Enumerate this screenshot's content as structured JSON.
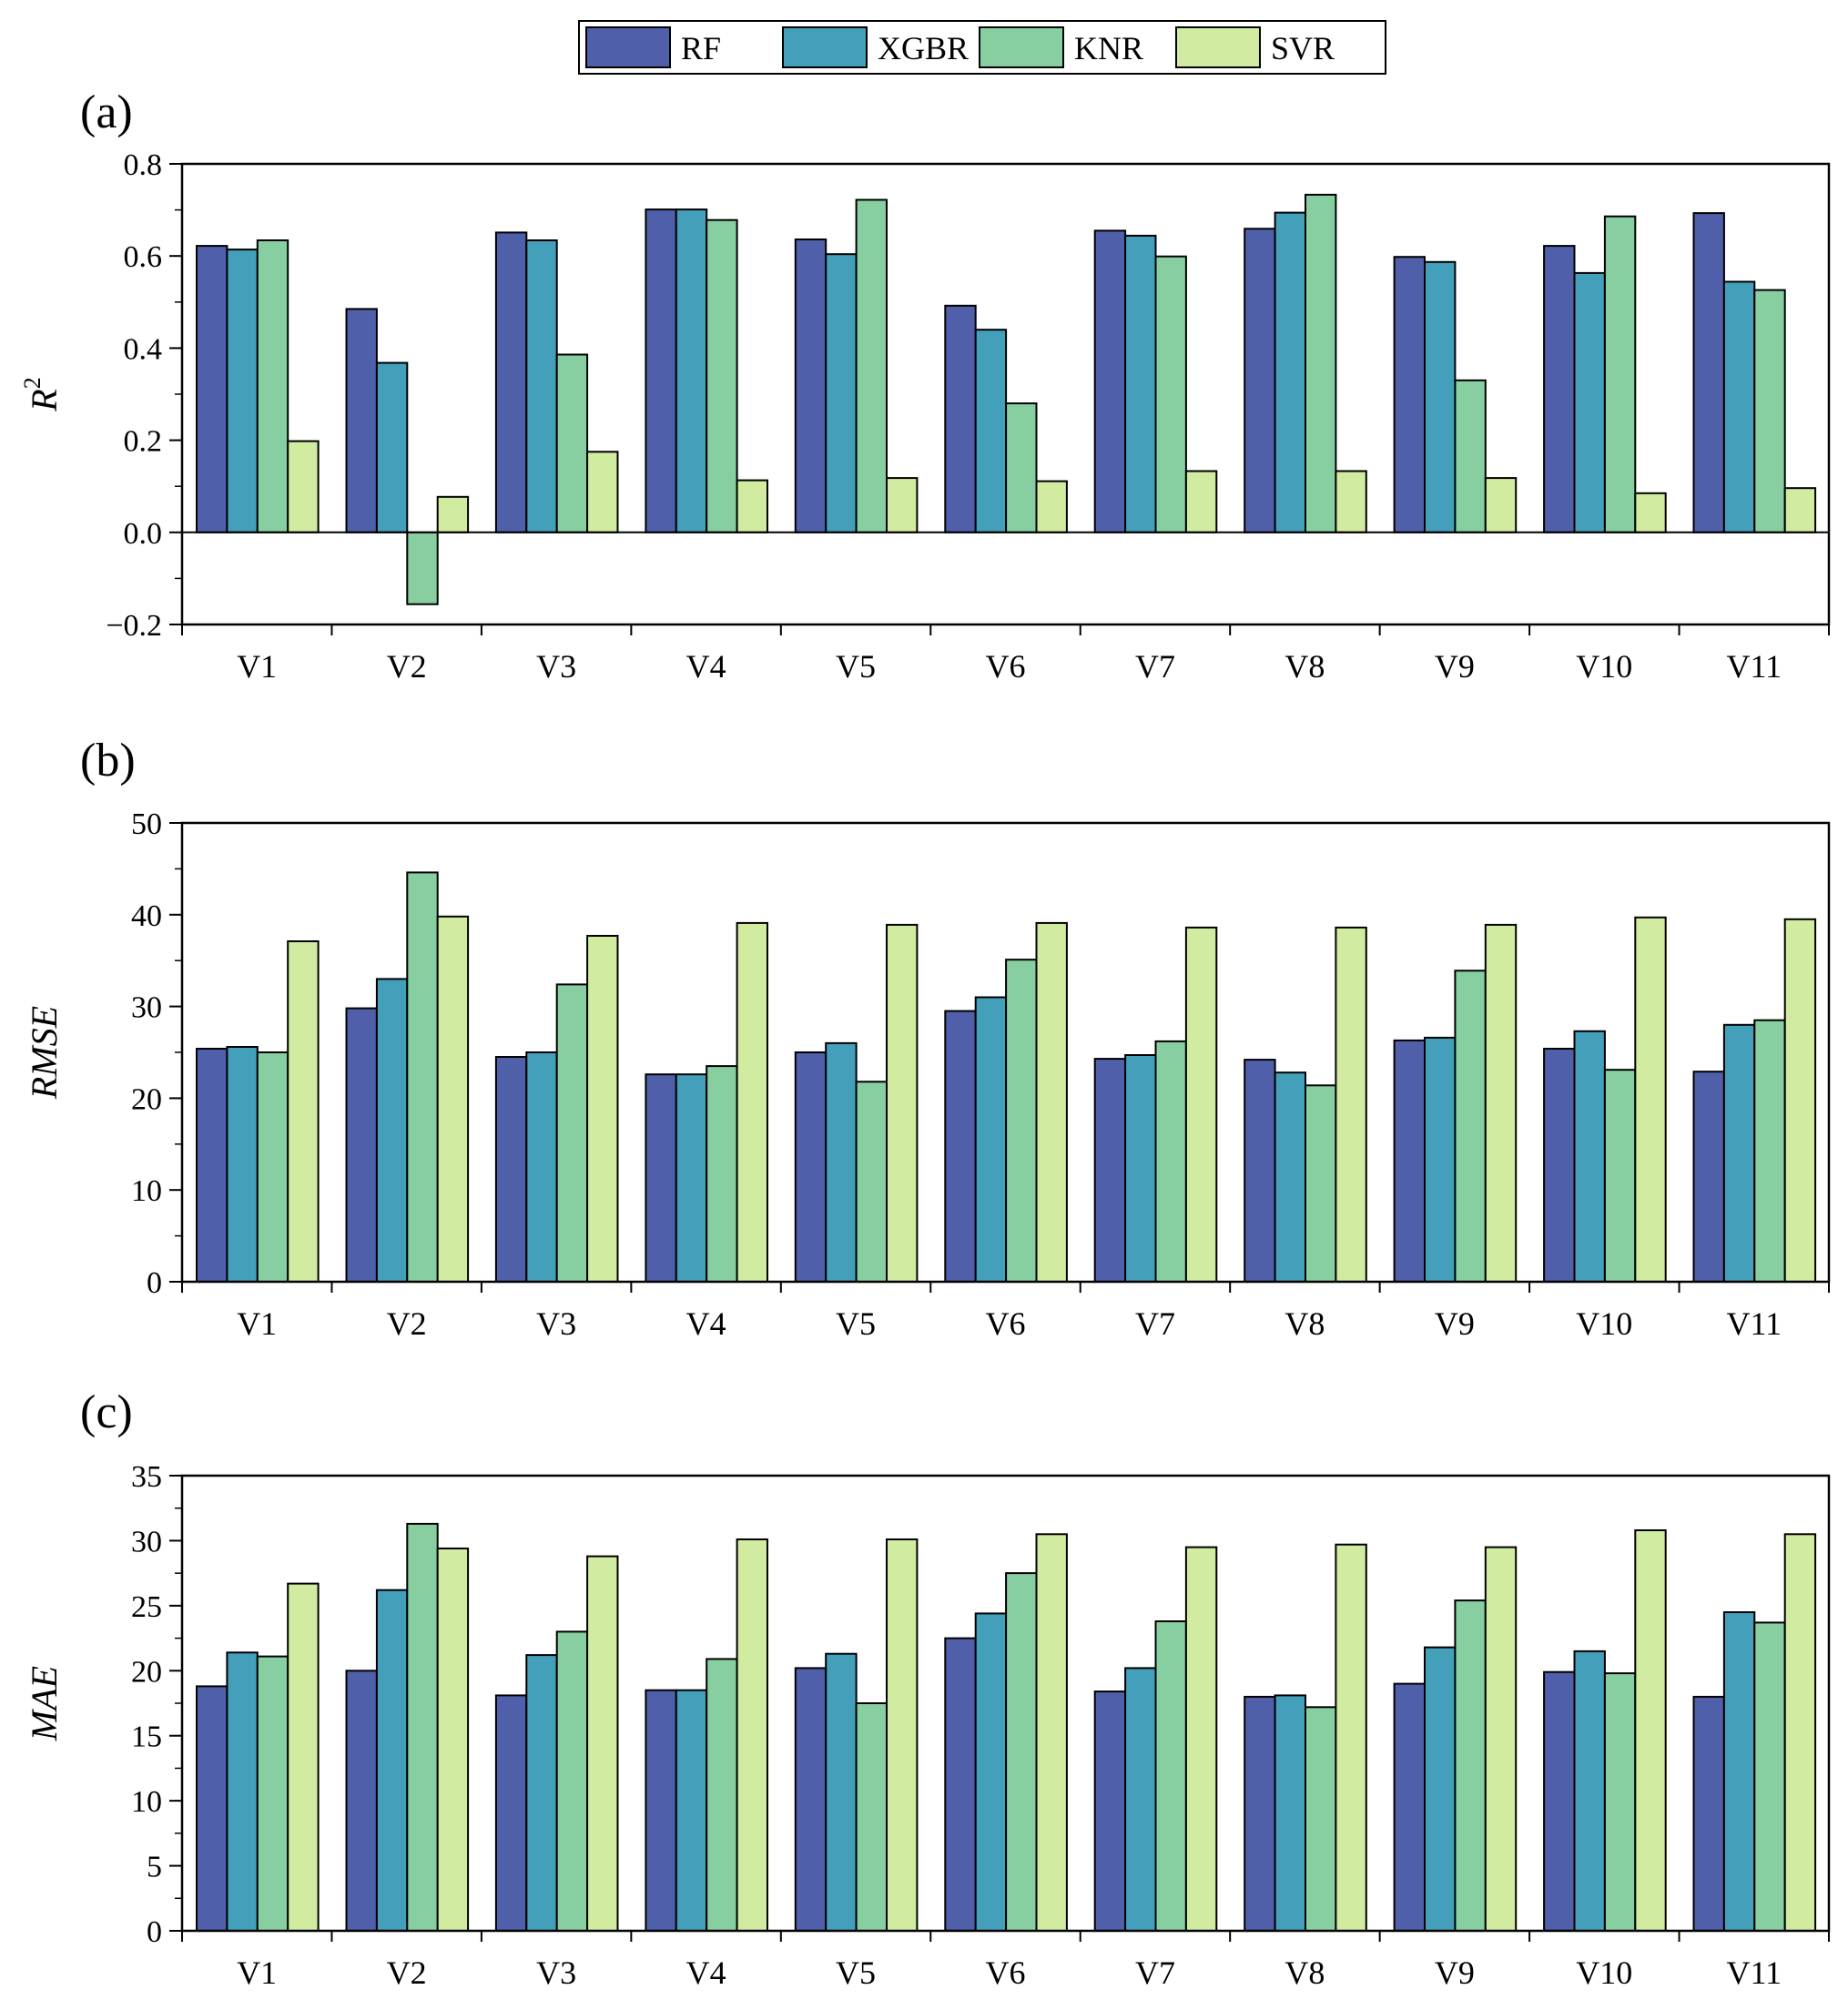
{
  "chart_data": {
    "type": "bar",
    "legend": {
      "position": "top-center",
      "entries": [
        {
          "name": "RF",
          "color": "#4f5fa9"
        },
        {
          "name": "XGBR",
          "color": "#449fba"
        },
        {
          "name": "KNR",
          "color": "#87cfa0"
        },
        {
          "name": "SVR",
          "color": "#d1eba0"
        }
      ]
    },
    "panels": [
      {
        "label": "(a)",
        "ylabel": "R",
        "ylabel_sup": "2",
        "ylim": [
          -0.2,
          0.8
        ],
        "ymajor": 0.2,
        "yminor": 0.1,
        "ytick_labels": [
          "−0.2",
          "0.0",
          "0.2",
          "0.4",
          "0.6",
          "0.8"
        ],
        "categories": [
          "V1",
          "V2",
          "V3",
          "V4",
          "V5",
          "V6",
          "V7",
          "V8",
          "V9",
          "V10",
          "V11"
        ],
        "series": [
          {
            "name": "RF",
            "values": [
              0.622,
              0.485,
              0.651,
              0.701,
              0.636,
              0.492,
              0.655,
              0.659,
              0.598,
              0.622,
              0.693
            ]
          },
          {
            "name": "XGBR",
            "values": [
              0.614,
              0.368,
              0.634,
              0.701,
              0.604,
              0.44,
              0.644,
              0.694,
              0.587,
              0.563,
              0.544
            ]
          },
          {
            "name": "KNR",
            "values": [
              0.634,
              -0.156,
              0.386,
              0.678,
              0.722,
              0.28,
              0.599,
              0.733,
              0.33,
              0.686,
              0.526
            ]
          },
          {
            "name": "SVR",
            "values": [
              0.198,
              0.077,
              0.175,
              0.113,
              0.118,
              0.111,
              0.133,
              0.133,
              0.118,
              0.085,
              0.096
            ]
          }
        ]
      },
      {
        "label": "(b)",
        "ylabel": "RMSE",
        "ylabel_sup": "",
        "ylim": [
          0,
          50
        ],
        "ymajor": 10,
        "yminor": 5,
        "ytick_labels": [
          "0",
          "10",
          "20",
          "30",
          "40",
          "50"
        ],
        "categories": [
          "V1",
          "V2",
          "V3",
          "V4",
          "V5",
          "V6",
          "V7",
          "V8",
          "V9",
          "V10",
          "V11"
        ],
        "series": [
          {
            "name": "RF",
            "values": [
              25.4,
              29.8,
              24.5,
              22.6,
              25.0,
              29.5,
              24.3,
              24.2,
              26.3,
              25.4,
              22.9
            ]
          },
          {
            "name": "XGBR",
            "values": [
              25.6,
              33.0,
              25.0,
              22.6,
              26.0,
              31.0,
              24.7,
              22.8,
              26.6,
              27.3,
              28.0
            ]
          },
          {
            "name": "KNR",
            "values": [
              25.0,
              44.6,
              32.4,
              23.5,
              21.8,
              35.1,
              26.2,
              21.4,
              33.9,
              23.1,
              28.5
            ]
          },
          {
            "name": "SVR",
            "values": [
              37.1,
              39.8,
              37.7,
              39.1,
              38.9,
              39.1,
              38.6,
              38.6,
              38.9,
              39.7,
              39.5
            ]
          }
        ]
      },
      {
        "label": "(c)",
        "ylabel": "MAE",
        "ylabel_sup": "",
        "ylim": [
          0,
          35
        ],
        "ymajor": 5,
        "yminor": 2.5,
        "ytick_labels": [
          "0",
          "5",
          "10",
          "15",
          "20",
          "25",
          "30",
          "35"
        ],
        "categories": [
          "V1",
          "V2",
          "V3",
          "V4",
          "V5",
          "V6",
          "V7",
          "V8",
          "V9",
          "V10",
          "V11"
        ],
        "series": [
          {
            "name": "RF",
            "values": [
              18.8,
              20.0,
              18.1,
              18.5,
              20.2,
              22.5,
              18.4,
              18.0,
              19.0,
              19.9,
              18.0
            ]
          },
          {
            "name": "XGBR",
            "values": [
              21.4,
              26.2,
              21.2,
              18.5,
              21.3,
              24.4,
              20.2,
              18.1,
              21.8,
              21.5,
              24.5
            ]
          },
          {
            "name": "KNR",
            "values": [
              21.1,
              31.3,
              23.0,
              20.9,
              17.5,
              27.5,
              23.8,
              17.2,
              25.4,
              19.8,
              23.7
            ]
          },
          {
            "name": "SVR",
            "values": [
              26.7,
              29.4,
              28.8,
              30.1,
              30.1,
              30.5,
              29.5,
              29.7,
              29.5,
              30.8,
              30.5
            ]
          }
        ]
      }
    ]
  }
}
